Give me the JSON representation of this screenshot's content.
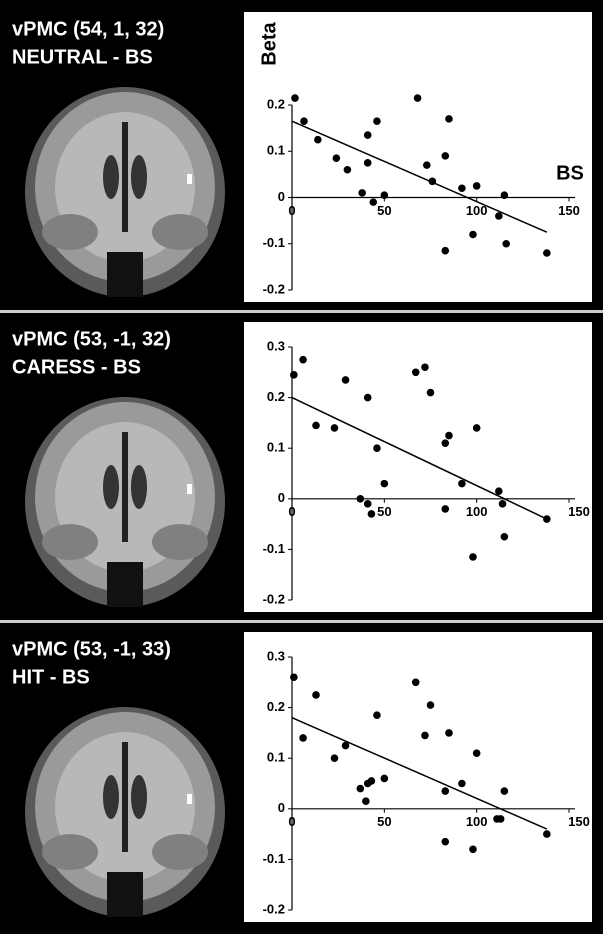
{
  "chart_data": [
    {
      "type": "scatter",
      "title": "vPMC (54, 1, 32)",
      "subtitle": "NEUTRAL - BS",
      "ylabel": "Beta",
      "xlabel": "BS",
      "color": "#000000",
      "x": [
        1.6,
        6.5,
        14,
        24,
        30,
        38,
        41,
        41,
        46,
        44,
        50,
        68,
        73,
        76,
        85,
        83,
        83,
        92,
        100,
        98,
        112,
        115,
        116,
        138
      ],
      "values": [
        0.215,
        0.165,
        0.125,
        0.085,
        0.06,
        0.01,
        0.075,
        0.135,
        0.165,
        -0.01,
        0.005,
        0.215,
        0.07,
        0.035,
        0.17,
        0.09,
        -0.115,
        0.02,
        0.025,
        -0.08,
        -0.04,
        0.005,
        -0.1,
        -0.12
      ],
      "trendline": {
        "x": [
          0,
          138
        ],
        "values": [
          0.165,
          -0.075
        ]
      },
      "xlim": [
        0,
        150
      ],
      "ylim": [
        -0.2,
        0.2
      ],
      "xticks": [
        0,
        50,
        100,
        150
      ],
      "yticks": [
        0.2,
        0.1,
        0,
        -0.1,
        -0.2
      ]
    },
    {
      "type": "scatter",
      "title": "vPMC (53, -1, 32)",
      "subtitle": "CARESS - BS",
      "color": "#000000",
      "x": [
        1,
        6,
        13,
        23,
        29,
        37,
        41,
        41,
        43,
        46,
        50,
        67,
        72,
        75,
        83,
        85,
        83,
        92,
        100,
        98,
        112,
        114,
        115,
        138
      ],
      "values": [
        0.245,
        0.275,
        0.145,
        0.14,
        0.235,
        0,
        0.2,
        -0.01,
        -0.03,
        0.1,
        0.03,
        0.25,
        0.26,
        0.21,
        0.11,
        0.125,
        -0.02,
        0.03,
        0.14,
        -0.115,
        0.015,
        -0.01,
        -0.075,
        -0.04
      ],
      "trendline": {
        "x": [
          0,
          138
        ],
        "values": [
          0.2,
          -0.04
        ]
      },
      "xlim": [
        0,
        150
      ],
      "ylim": [
        -0.2,
        0.3
      ],
      "xticks": [
        0,
        50,
        100,
        150
      ],
      "yticks": [
        0.3,
        0.2,
        0.1,
        0,
        -0.1,
        -0.2
      ]
    },
    {
      "type": "scatter",
      "title": "vPMC (53, -1, 33)",
      "subtitle": "HIT - BS",
      "color": "#000000",
      "x": [
        1,
        6,
        13,
        23,
        29,
        37,
        41,
        40,
        43,
        46,
        50,
        67,
        72,
        75,
        83,
        85,
        83,
        92,
        100,
        98,
        111,
        113,
        115,
        138
      ],
      "values": [
        0.26,
        0.14,
        0.225,
        0.1,
        0.125,
        0.04,
        0.05,
        0.015,
        0.055,
        0.185,
        0.06,
        0.25,
        0.145,
        0.205,
        0.035,
        0.15,
        -0.065,
        0.05,
        0.11,
        -0.08,
        -0.02,
        -0.02,
        0.035,
        -0.05
      ],
      "trendline": {
        "x": [
          0,
          138
        ],
        "values": [
          0.18,
          -0.04
        ]
      },
      "xlim": [
        0,
        150
      ],
      "ylim": [
        -0.2,
        0.3
      ],
      "xticks": [
        0,
        50,
        100,
        150
      ],
      "yticks": [
        0.3,
        0.2,
        0.1,
        0,
        -0.1,
        -0.2
      ]
    }
  ]
}
